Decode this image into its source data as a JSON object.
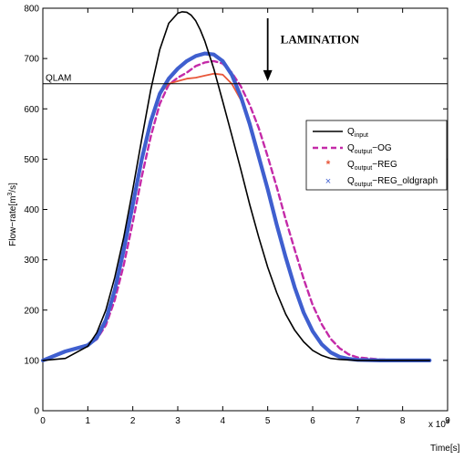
{
  "chart_data": {
    "type": "line",
    "title": "",
    "xlabel": "Time[s]",
    "ylabel": "Flow−rate[m^3/s]",
    "ylabel_main": "Flow−rate[m",
    "ylabel_sup": "3",
    "ylabel_tail": "/s]",
    "x_multiplier_label": "x 10",
    "x_multiplier_exp": "4",
    "xlim": [
      0,
      9
    ],
    "ylim": [
      0,
      800
    ],
    "x_ticks": [
      0,
      1,
      2,
      3,
      4,
      5,
      6,
      7,
      8,
      9
    ],
    "y_ticks": [
      0,
      100,
      200,
      300,
      400,
      500,
      600,
      700,
      800
    ],
    "grid": false,
    "legend_position": "right",
    "annotation": {
      "text": "LAMINATION",
      "arrow_x": 5.0,
      "arrow_y_top": 780,
      "arrow_y_bottom": 655
    },
    "threshold": {
      "label": "QLAM",
      "value": 650
    },
    "series": [
      {
        "legend_main": "Q",
        "legend_sub": "input",
        "legend_tail": "",
        "color": "#000000",
        "style": "solid",
        "x": [
          0,
          0.5,
          1,
          1.2,
          1.4,
          1.6,
          1.8,
          2,
          2.2,
          2.4,
          2.6,
          2.8,
          3,
          3.1,
          3.2,
          3.3,
          3.4,
          3.5,
          3.6,
          3.8,
          4,
          4.2,
          4.4,
          4.6,
          4.8,
          5,
          5.2,
          5.4,
          5.6,
          5.8,
          6,
          6.2,
          6.4,
          6.6,
          6.8,
          7,
          7.5,
          8,
          8.6
        ],
        "y": [
          100,
          104,
          128,
          155,
          200,
          265,
          345,
          440,
          540,
          638,
          718,
          770,
          790,
          793,
          792,
          786,
          775,
          757,
          735,
          680,
          615,
          548,
          480,
          410,
          345,
          285,
          235,
          192,
          160,
          137,
          120,
          110,
          104,
          102,
          101,
          100,
          100,
          100,
          100
        ]
      },
      {
        "legend_main": "Q",
        "legend_sub": "output",
        "legend_tail": "−OG",
        "color": "#c42aa8",
        "style": "dashed",
        "x": [
          0,
          0.5,
          1,
          1.2,
          1.4,
          1.6,
          1.8,
          2,
          2.2,
          2.4,
          2.6,
          2.8,
          3,
          3.2,
          3.4,
          3.6,
          3.8,
          4,
          4.2,
          4.4,
          4.6,
          4.8,
          5,
          5.2,
          5.4,
          5.6,
          5.8,
          6,
          6.2,
          6.4,
          6.6,
          6.8,
          7,
          7.5,
          8,
          8.6
        ],
        "y": [
          100,
          118,
          130,
          142,
          170,
          220,
          290,
          375,
          465,
          545,
          610,
          648,
          662,
          672,
          685,
          692,
          695,
          690,
          672,
          645,
          608,
          562,
          505,
          445,
          380,
          320,
          262,
          210,
          172,
          143,
          124,
          112,
          106,
          102,
          100,
          100
        ]
      },
      {
        "legend_main": "Q",
        "legend_sub": "output",
        "legend_tail": "−REG",
        "color": "#e8573a",
        "style": "solid-thin",
        "x": [
          0,
          0.5,
          1,
          1.2,
          1.4,
          1.6,
          1.8,
          2,
          2.2,
          2.4,
          2.6,
          2.8,
          3,
          3.2,
          3.4,
          3.6,
          3.8,
          4,
          4.2,
          4.4,
          4.6,
          4.8,
          5,
          5.2,
          5.4,
          5.6,
          5.8,
          6,
          6.2,
          6.4,
          6.6,
          6.8,
          7,
          7.5,
          8,
          8.6
        ],
        "y": [
          100,
          118,
          130,
          145,
          180,
          240,
          320,
          410,
          500,
          575,
          630,
          650,
          655,
          660,
          662,
          666,
          670,
          668,
          650,
          618,
          570,
          510,
          442,
          372,
          305,
          245,
          195,
          158,
          132,
          116,
          107,
          103,
          101,
          100,
          100,
          100
        ]
      },
      {
        "legend_main": "Q",
        "legend_sub": "output",
        "legend_tail": "−REG_oldgraph",
        "color": "#3f5fcf",
        "style": "thick",
        "x": [
          0,
          0.5,
          1,
          1.2,
          1.4,
          1.6,
          1.8,
          2,
          2.2,
          2.4,
          2.6,
          2.8,
          3,
          3.2,
          3.4,
          3.6,
          3.8,
          4,
          4.2,
          4.4,
          4.6,
          4.8,
          5,
          5.2,
          5.4,
          5.6,
          5.8,
          6,
          6.2,
          6.4,
          6.6,
          6.8,
          7,
          7.5,
          8,
          8.6
        ],
        "y": [
          100,
          118,
          130,
          145,
          180,
          240,
          320,
          410,
          500,
          575,
          630,
          660,
          680,
          695,
          705,
          710,
          708,
          695,
          668,
          625,
          570,
          505,
          440,
          370,
          305,
          245,
          195,
          158,
          132,
          116,
          107,
          103,
          101,
          100,
          100,
          100
        ]
      }
    ]
  }
}
